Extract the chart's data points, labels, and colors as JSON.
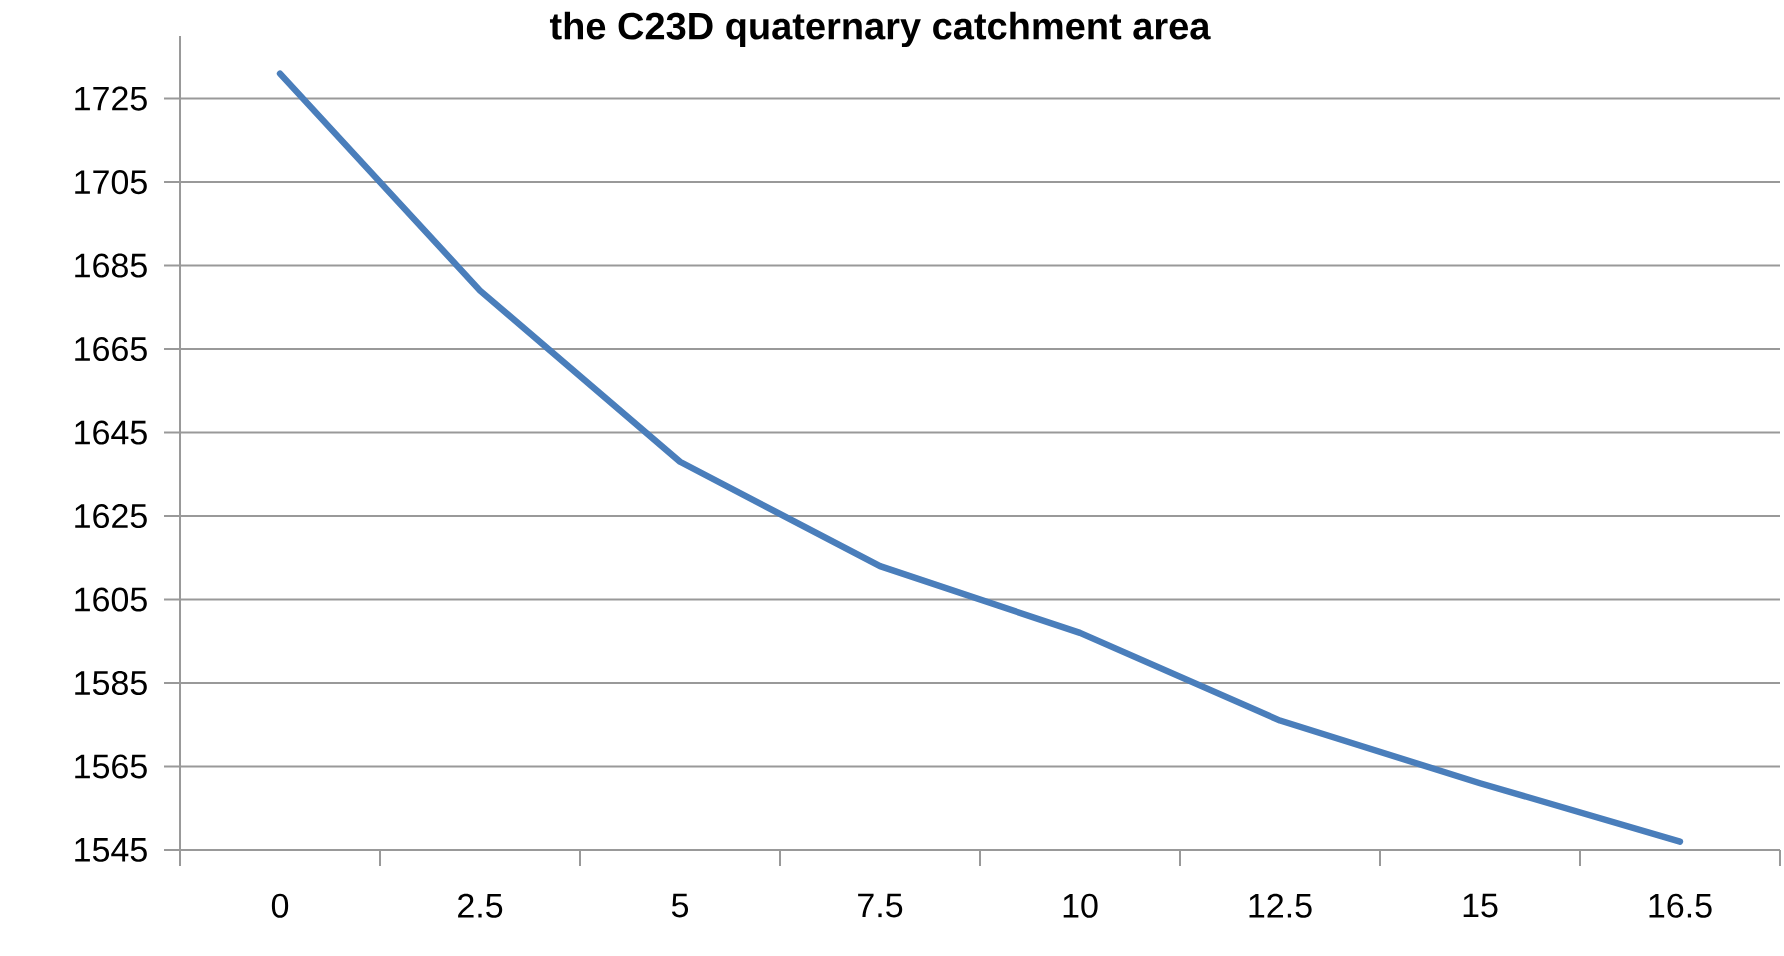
{
  "chart_data": {
    "type": "line",
    "title": "the C23D quaternary catchment area",
    "categories": [
      "0",
      "2.5",
      "5",
      "7.5",
      "10",
      "12.5",
      "15",
      "16.5"
    ],
    "series": [
      {
        "color": "#4a7ebb",
        "values": [
          1731,
          1679,
          1638,
          1613,
          1597,
          1576,
          1561,
          1547
        ]
      }
    ],
    "ylim": [
      1545,
      1740
    ],
    "yticks": [
      1545,
      1565,
      1585,
      1605,
      1625,
      1645,
      1665,
      1685,
      1705,
      1725
    ],
    "grid": "y",
    "marker": "none",
    "line_style": "solid"
  }
}
